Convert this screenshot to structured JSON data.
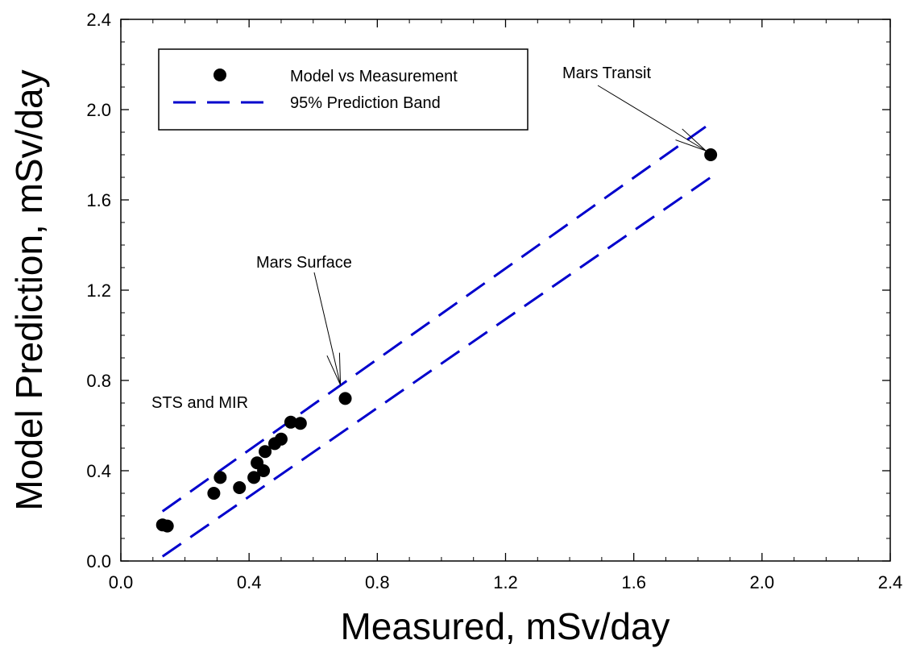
{
  "chart_data": {
    "type": "scatter",
    "xlabel": "Measured, mSv/day",
    "ylabel": "Model Prediction, mSv/day",
    "xlim": [
      0.0,
      2.4
    ],
    "ylim": [
      0.0,
      2.4
    ],
    "xticks": [
      "0.0",
      "0.4",
      "0.8",
      "1.2",
      "1.6",
      "2.0",
      "2.4"
    ],
    "yticks": [
      "0.0",
      "0.4",
      "0.8",
      "1.2",
      "1.6",
      "2.0",
      "2.4"
    ],
    "grid": false,
    "legend_position": "top-left",
    "colors": {
      "points": "#000000",
      "band": "#0000cc"
    },
    "series": [
      {
        "name": "Model vs Measurement",
        "kind": "points",
        "x": [
          0.13,
          0.145,
          0.29,
          0.31,
          0.37,
          0.415,
          0.425,
          0.445,
          0.45,
          0.48,
          0.5,
          0.53,
          0.56,
          0.7,
          1.84
        ],
        "y": [
          0.16,
          0.155,
          0.3,
          0.37,
          0.325,
          0.37,
          0.435,
          0.4,
          0.485,
          0.52,
          0.54,
          0.615,
          0.61,
          0.72,
          1.8
        ]
      },
      {
        "name": "95% Prediction Band",
        "kind": "dashed-line",
        "bands": [
          {
            "x": [
              0.13,
              1.84
            ],
            "y": [
              0.22,
              1.94
            ]
          },
          {
            "x": [
              0.13,
              1.84
            ],
            "y": [
              0.02,
              1.7
            ]
          }
        ]
      }
    ],
    "annotations": [
      {
        "text": "Mars Transit",
        "x": 1.84,
        "y": 1.8
      },
      {
        "text": "Mars Surface",
        "x": 0.685,
        "y": 0.78
      },
      {
        "text": "STS and MIR"
      }
    ]
  }
}
